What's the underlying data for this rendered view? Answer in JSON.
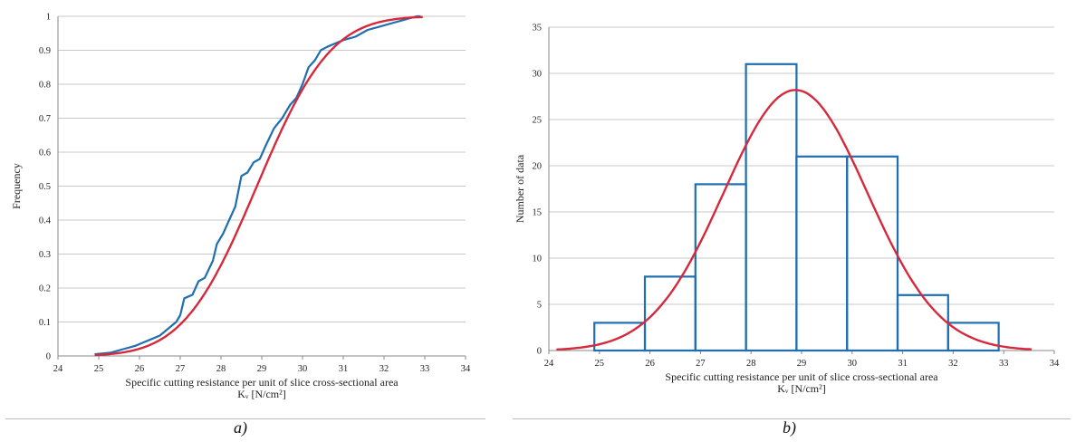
{
  "captions": [
    "a)",
    "b)"
  ],
  "chart_data": [
    {
      "type": "line",
      "xlabel_line1": "Specific cutting resistance per unit of slice cross-sectional area",
      "xlabel_line2": "Kᵥ [N/cm²]",
      "ylabel": "Frequency",
      "xlim": [
        24,
        34
      ],
      "ylim": [
        0,
        1
      ],
      "xticks": [
        24,
        25,
        26,
        27,
        28,
        29,
        30,
        31,
        32,
        33,
        34
      ],
      "yticks": [
        0,
        0.1,
        0.2,
        0.3,
        0.4,
        0.5,
        0.6,
        0.7,
        0.8,
        0.9,
        1
      ],
      "grid": true,
      "colors": {
        "empirical": "#1f6fb0",
        "fitted": "#d42a3c",
        "grid": "#c8c8c8"
      },
      "series": [
        {
          "style": "step",
          "x": [
            24.9,
            25.3,
            25.6,
            25.9,
            26.1,
            26.3,
            26.5,
            26.7,
            26.9,
            27.0,
            27.1,
            27.3,
            27.45,
            27.6,
            27.8,
            27.9,
            28.05,
            28.2,
            28.35,
            28.5,
            28.65,
            28.8,
            28.95,
            29.1,
            29.3,
            29.5,
            29.7,
            29.85,
            30.0,
            30.15,
            30.3,
            30.45,
            30.6,
            30.8,
            31.0,
            31.3,
            31.6,
            31.9,
            32.2,
            32.5,
            32.8,
            32.9
          ],
          "y": [
            0.005,
            0.01,
            0.02,
            0.03,
            0.04,
            0.05,
            0.06,
            0.08,
            0.1,
            0.12,
            0.17,
            0.18,
            0.22,
            0.23,
            0.28,
            0.33,
            0.36,
            0.4,
            0.44,
            0.53,
            0.54,
            0.57,
            0.58,
            0.62,
            0.67,
            0.7,
            0.74,
            0.76,
            0.8,
            0.85,
            0.87,
            0.9,
            0.91,
            0.92,
            0.93,
            0.94,
            0.96,
            0.97,
            0.98,
            0.99,
            1.0,
            1.0
          ]
        },
        {
          "style": "smooth",
          "normal_mean": 28.88,
          "normal_sd": 1.42
        }
      ]
    },
    {
      "type": "bar",
      "xlabel_line1": "Specific cutting resistance per unit of slice cross-sectional area",
      "xlabel_line2": "Kᵥ [N/cm²]",
      "ylabel": "Number of data",
      "xlim": [
        24,
        34
      ],
      "ylim": [
        0,
        35
      ],
      "xticks": [
        24,
        25,
        26,
        27,
        28,
        29,
        30,
        31,
        32,
        33,
        34
      ],
      "yticks": [
        0,
        5,
        10,
        15,
        20,
        25,
        30,
        35
      ],
      "grid": true,
      "colors": {
        "bars": "#1f6fb0",
        "fitted": "#d42a3c",
        "grid": "#c8c8c8"
      },
      "bin_edges": [
        24.9,
        25.9,
        26.9,
        27.9,
        28.9,
        29.9,
        30.9,
        31.9,
        32.9
      ],
      "values": [
        3,
        8,
        18,
        31,
        21,
        21,
        6,
        3
      ],
      "fitted_curve": {
        "peak": 28.2,
        "mean": 28.88,
        "sd": 1.42,
        "x_range": [
          24.15,
          33.55
        ]
      }
    }
  ]
}
